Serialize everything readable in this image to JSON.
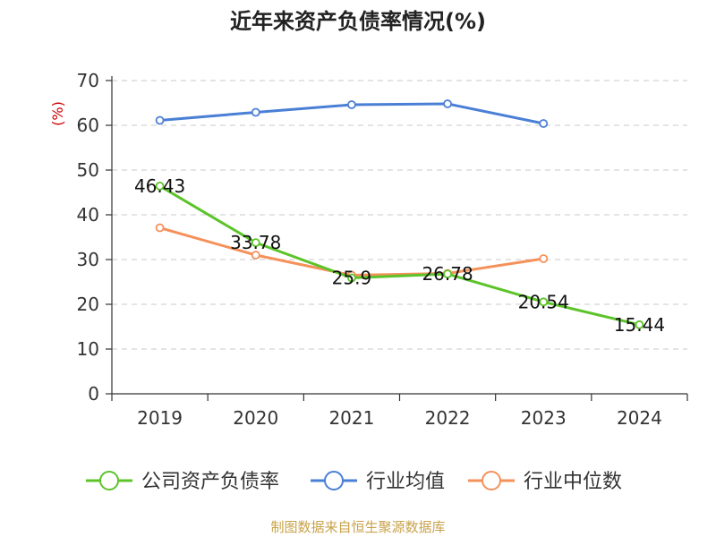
{
  "chart_data": {
    "type": "line",
    "title": "近年来资产负债率情况(%)",
    "yunit": "(%)",
    "categories": [
      "2019",
      "2020",
      "2021",
      "2022",
      "2023",
      "2024"
    ],
    "ylim": [
      0,
      70
    ],
    "yticks": [
      "0",
      "10",
      "20",
      "30",
      "40",
      "50",
      "60",
      "70"
    ],
    "grid": true,
    "legend_position": "bottom",
    "series": [
      {
        "name": "公司资产负债率",
        "color": "#5cc42a",
        "values": [
          46.43,
          33.78,
          25.9,
          26.78,
          20.54,
          15.44
        ],
        "labels": [
          "46.43",
          "33.78",
          "25.9",
          "26.78",
          "20.54",
          "15.44"
        ]
      },
      {
        "name": "行业均值",
        "color": "#4a7fd6",
        "values": [
          61.1,
          62.9,
          64.6,
          64.8,
          60.4,
          null
        ],
        "labels": []
      },
      {
        "name": "行业中位数",
        "color": "#f5915a",
        "values": [
          37.1,
          31.0,
          26.5,
          26.9,
          30.2,
          null
        ],
        "labels": []
      }
    ]
  },
  "source_text": "制图数据来自恒生聚源数据库"
}
